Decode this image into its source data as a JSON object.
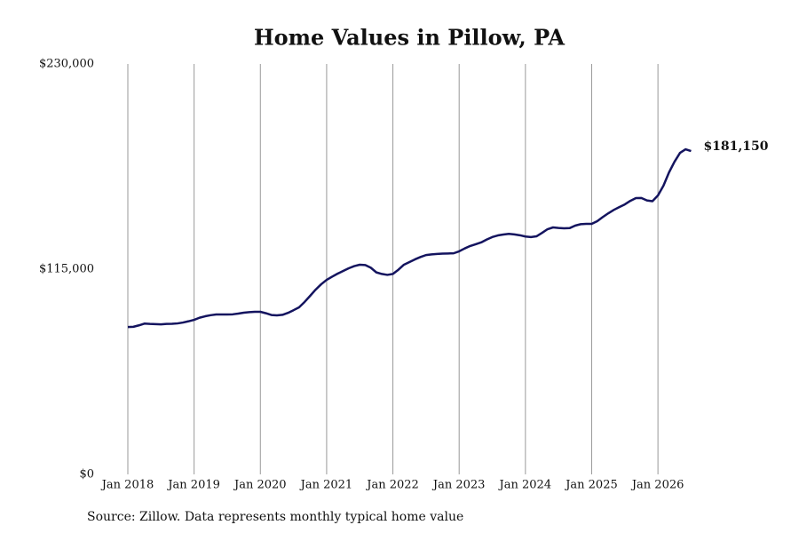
{
  "chart_data": {
    "type": "line",
    "title": "Home Values in Pillow, PA",
    "source": "Source: Zillow. Data represents monthly typical home value",
    "x": [
      "Jan 2018",
      "Feb 2018",
      "Mar 2018",
      "Apr 2018",
      "May 2018",
      "Jun 2018",
      "Jul 2018",
      "Aug 2018",
      "Sep 2018",
      "Oct 2018",
      "Nov 2018",
      "Dec 2018",
      "Jan 2019",
      "Feb 2019",
      "Mar 2019",
      "Apr 2019",
      "May 2019",
      "Jun 2019",
      "Jul 2019",
      "Aug 2019",
      "Sep 2019",
      "Oct 2019",
      "Nov 2019",
      "Dec 2019",
      "Jan 2020",
      "Feb 2020",
      "Mar 2020",
      "Apr 2020",
      "May 2020",
      "Jun 2020",
      "Jul 2020",
      "Aug 2020",
      "Sep 2020",
      "Oct 2020",
      "Nov 2020",
      "Dec 2020",
      "Jan 2021",
      "Feb 2021",
      "Mar 2021",
      "Apr 2021",
      "May 2021",
      "Jun 2021",
      "Jul 2021",
      "Aug 2021",
      "Sep 2021",
      "Oct 2021",
      "Nov 2021",
      "Dec 2021",
      "Jan 2022",
      "Feb 2022",
      "Mar 2022",
      "Apr 2022",
      "May 2022",
      "Jun 2022",
      "Jul 2022",
      "Aug 2022",
      "Sep 2022",
      "Oct 2022",
      "Nov 2022",
      "Dec 2022",
      "Jan 2023",
      "Feb 2023",
      "Mar 2023",
      "Apr 2023",
      "May 2023",
      "Jun 2023",
      "Jul 2023",
      "Aug 2023",
      "Sep 2023",
      "Oct 2023",
      "Nov 2023",
      "Dec 2023",
      "Jan 2024",
      "Feb 2024",
      "Mar 2024",
      "Apr 2024",
      "May 2024",
      "Jun 2024",
      "Jul 2024",
      "Aug 2024",
      "Sep 2024",
      "Oct 2024",
      "Nov 2024",
      "Dec 2024",
      "Jan 2025",
      "Feb 2025",
      "Mar 2025",
      "Apr 2025",
      "May 2025",
      "Jun 2025",
      "Jul 2025",
      "Aug 2025",
      "Sep 2025",
      "Oct 2025",
      "Nov 2025",
      "Dec 2025",
      "Jan 2026",
      "Feb 2026",
      "Mar 2026",
      "Apr 2026",
      "May 2026",
      "Jun 2026",
      "Jul 2026"
    ],
    "series": [
      {
        "name": "Typical home value",
        "color": "#14145f",
        "values": [
          82600,
          82700,
          83500,
          84500,
          84300,
          84200,
          84100,
          84300,
          84400,
          84600,
          85100,
          85800,
          86600,
          87800,
          88600,
          89200,
          89600,
          89600,
          89600,
          89700,
          90100,
          90600,
          90900,
          91100,
          91100,
          90300,
          89300,
          89100,
          89400,
          90500,
          92000,
          93600,
          96600,
          100000,
          103500,
          106500,
          109000,
          110800,
          112500,
          114000,
          115500,
          116700,
          117500,
          117300,
          115800,
          113200,
          112300,
          111800,
          112300,
          114700,
          117500,
          119000,
          120500,
          121800,
          122900,
          123300,
          123500,
          123700,
          123800,
          123900,
          125000,
          126600,
          128000,
          129000,
          130000,
          131600,
          133000,
          133900,
          134400,
          134800,
          134500,
          134000,
          133300,
          133000,
          133400,
          135300,
          137400,
          138400,
          138100,
          137900,
          138000,
          139400,
          140200,
          140400,
          140400,
          141900,
          144200,
          146300,
          148200,
          149800,
          151300,
          153300,
          154800,
          154900,
          153500,
          153100,
          156300,
          161800,
          169200,
          175200,
          180200,
          182200,
          181150
        ]
      }
    ],
    "annotations": [
      {
        "text": "$181,150",
        "x": "Jul 2026",
        "y": 181150
      }
    ],
    "ylim": [
      0,
      230000
    ],
    "yticks": [
      {
        "value": 0,
        "label": "$0"
      },
      {
        "value": 115000,
        "label": "$115,000"
      },
      {
        "value": 230000,
        "label": "$230,000"
      }
    ],
    "xticks": [
      "Jan 2018",
      "Jan 2019",
      "Jan 2020",
      "Jan 2021",
      "Jan 2022",
      "Jan 2023",
      "Jan 2024",
      "Jan 2025",
      "Jan 2026"
    ],
    "grid": "x"
  }
}
